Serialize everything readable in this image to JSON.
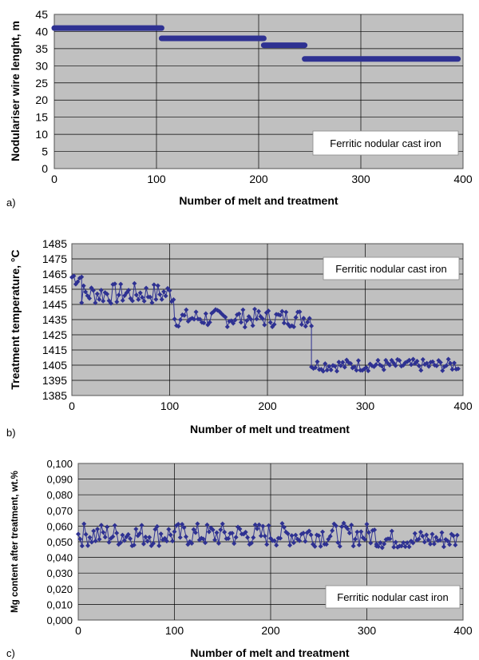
{
  "chart_data": [
    {
      "panel_label": "a)",
      "type": "line",
      "xlabel": "Number of melt and treatment",
      "ylabel": "Nodulariser wire lenght, m",
      "xlim": [
        0,
        400
      ],
      "ylim": [
        0,
        45
      ],
      "xticks": [
        "0",
        "100",
        "200",
        "300",
        "400"
      ],
      "yticks": [
        "0",
        "5",
        "10",
        "15",
        "20",
        "25",
        "30",
        "35",
        "40",
        "45"
      ],
      "annotation": "Ferritic nodular cast iron",
      "grid": true,
      "colors": {
        "series": "#2e3192",
        "plot_bg": "#c0c0c0",
        "grid": "#000000"
      },
      "segments": [
        {
          "x_start": 0,
          "x_end": 105,
          "value": 41
        },
        {
          "x_start": 105,
          "x_end": 205,
          "value": 38
        },
        {
          "x_start": 205,
          "x_end": 245,
          "value": 36
        },
        {
          "x_start": 245,
          "x_end": 395,
          "value": 32
        }
      ]
    },
    {
      "panel_label": "b)",
      "type": "line",
      "xlabel": "Number of melt und treatment",
      "ylabel": "Treatment temperature, °C",
      "xlim": [
        0,
        400
      ],
      "ylim": [
        1385,
        1485
      ],
      "xticks": [
        "0",
        "100",
        "200",
        "300",
        "400"
      ],
      "yticks": [
        "1385",
        "1395",
        "1405",
        "1415",
        "1425",
        "1435",
        "1445",
        "1455",
        "1465",
        "1475",
        "1485"
      ],
      "annotation": "Ferritic nodular cast iron",
      "grid": true,
      "colors": {
        "series": "#2e3192",
        "plot_bg": "#c0c0c0",
        "grid": "#000000"
      },
      "levels": [
        {
          "x_start": 0,
          "x_end": 10,
          "value": 1463,
          "spread": 6
        },
        {
          "x_start": 10,
          "x_end": 105,
          "value": 1452,
          "spread": 7
        },
        {
          "x_start": 105,
          "x_end": 245,
          "value": 1436,
          "spread": 6
        },
        {
          "x_start": 245,
          "x_end": 395,
          "value": 1405,
          "spread": 4
        }
      ]
    },
    {
      "panel_label": "c)",
      "type": "line",
      "xlabel": "Number of melt and treatment",
      "ylabel": "Mg content after treatment, wt.%",
      "xlim": [
        0,
        400
      ],
      "ylim": [
        0,
        0.1
      ],
      "xticks": [
        "0",
        "100",
        "200",
        "300",
        "400"
      ],
      "yticks": [
        "0,000",
        "0,010",
        "0,020",
        "0,030",
        "0,040",
        "0,050",
        "0,060",
        "0,070",
        "0,080",
        "0,090",
        "0,100"
      ],
      "annotation": "Ferritic nodular cast iron",
      "grid": true,
      "colors": {
        "series": "#2e3192",
        "plot_bg": "#c0c0c0",
        "grid": "#000000"
      },
      "levels": [
        {
          "x_start": 0,
          "x_end": 310,
          "value": 0.0545,
          "spread": 0.0075
        },
        {
          "x_start": 310,
          "x_end": 395,
          "value": 0.0515,
          "spread": 0.006
        }
      ]
    }
  ]
}
